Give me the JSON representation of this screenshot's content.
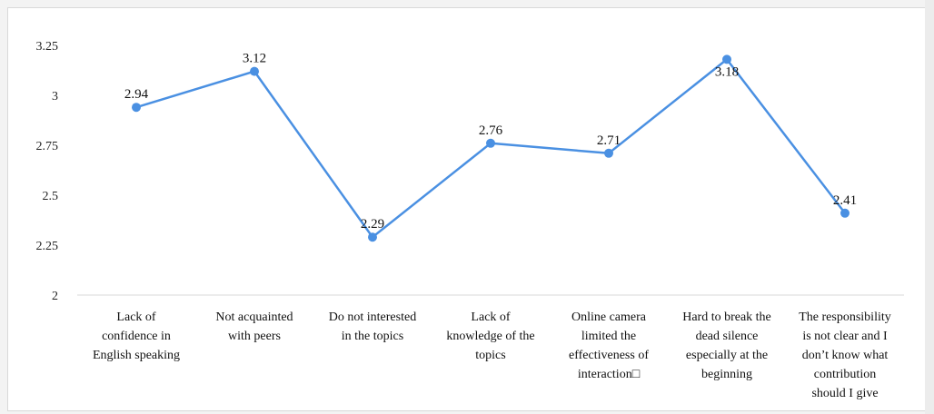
{
  "chart_data": {
    "type": "line",
    "categories": [
      [
        "Lack of",
        "confidence in",
        "English speaking"
      ],
      [
        "Not acquainted",
        "with peers"
      ],
      [
        "Do not interested",
        "in the topics"
      ],
      [
        "Lack of",
        "knowledge of the",
        "topics"
      ],
      [
        "Online camera",
        "limited the",
        "effectiveness of",
        "interaction□"
      ],
      [
        "Hard to break the",
        "dead silence",
        "especially at the",
        "beginning"
      ],
      [
        "The responsibility",
        "is not clear and I",
        "don’t know what",
        "contribution",
        "should I give"
      ]
    ],
    "series": [
      {
        "values": [
          2.94,
          3.12,
          2.29,
          2.76,
          2.71,
          3.18,
          2.41
        ]
      }
    ],
    "data_labels": [
      "2.94",
      "3.12",
      "2.29",
      "2.76",
      "2.71",
      "3.18",
      "2.41"
    ],
    "y_ticks": [
      "3.25",
      "3",
      "2.75",
      "2.5",
      "2.25",
      "2"
    ],
    "ylim": [
      2,
      3.25
    ],
    "grid": false,
    "line_color": "#4a90e2",
    "marker_color": "#4a90e2"
  }
}
